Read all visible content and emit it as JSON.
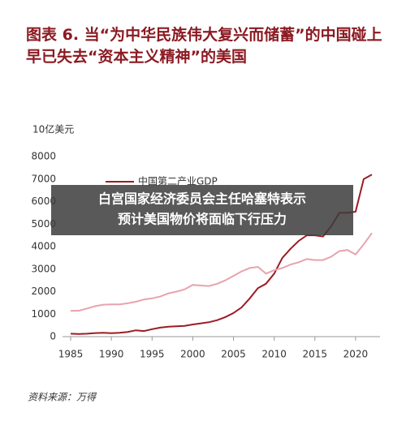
{
  "chart_data": {
    "type": "line",
    "title": "图表 6.  当“为中华民族伟大复兴而储蓄”的中国碰上早已失去“资本主义精神”的美国",
    "y_label": "10亿美元",
    "source": "资料来源：万得",
    "annotations": [
      "白宫国家经济委员会主任哈塞特表示",
      "预计美国物价将面临下行压力"
    ],
    "x": [
      1985,
      1986,
      1987,
      1988,
      1989,
      1990,
      1991,
      1992,
      1993,
      1994,
      1995,
      1996,
      1997,
      1998,
      1999,
      2000,
      2001,
      2002,
      2003,
      2004,
      2005,
      2006,
      2007,
      2008,
      2009,
      2010,
      2011,
      2012,
      2013,
      2014,
      2015,
      2016,
      2017,
      2018,
      2019,
      2020,
      2021,
      2022
    ],
    "series": [
      {
        "name": "中国第二产业GDP",
        "color": "#9b1c24",
        "values": [
          130,
          120,
          130,
          160,
          170,
          150,
          170,
          210,
          280,
          250,
          330,
          400,
          440,
          460,
          480,
          540,
          590,
          640,
          730,
          870,
          1050,
          1300,
          1700,
          2150,
          2350,
          2800,
          3500,
          3900,
          4250,
          4500,
          4500,
          4450,
          4900,
          5500,
          5500,
          5550,
          7000,
          7200
        ]
      },
      {
        "color": "#e8a3ad",
        "values": [
          1150,
          1150,
          1250,
          1350,
          1420,
          1430,
          1430,
          1480,
          1550,
          1650,
          1700,
          1780,
          1920,
          2000,
          2100,
          2300,
          2270,
          2250,
          2350,
          2500,
          2700,
          2900,
          3050,
          3100,
          2800,
          2950,
          3050,
          3200,
          3300,
          3450,
          3400,
          3400,
          3550,
          3800,
          3850,
          3650,
          4100,
          4600
        ]
      }
    ],
    "xlim": [
      1984,
      2023
    ],
    "xticks": [
      1985,
      1990,
      1995,
      2000,
      2005,
      2010,
      2015,
      2020
    ],
    "ylim": [
      0,
      8000
    ],
    "yticks": [
      0,
      1000,
      2000,
      3000,
      4000,
      5000,
      6000,
      7000,
      8000
    ],
    "grid": false
  }
}
